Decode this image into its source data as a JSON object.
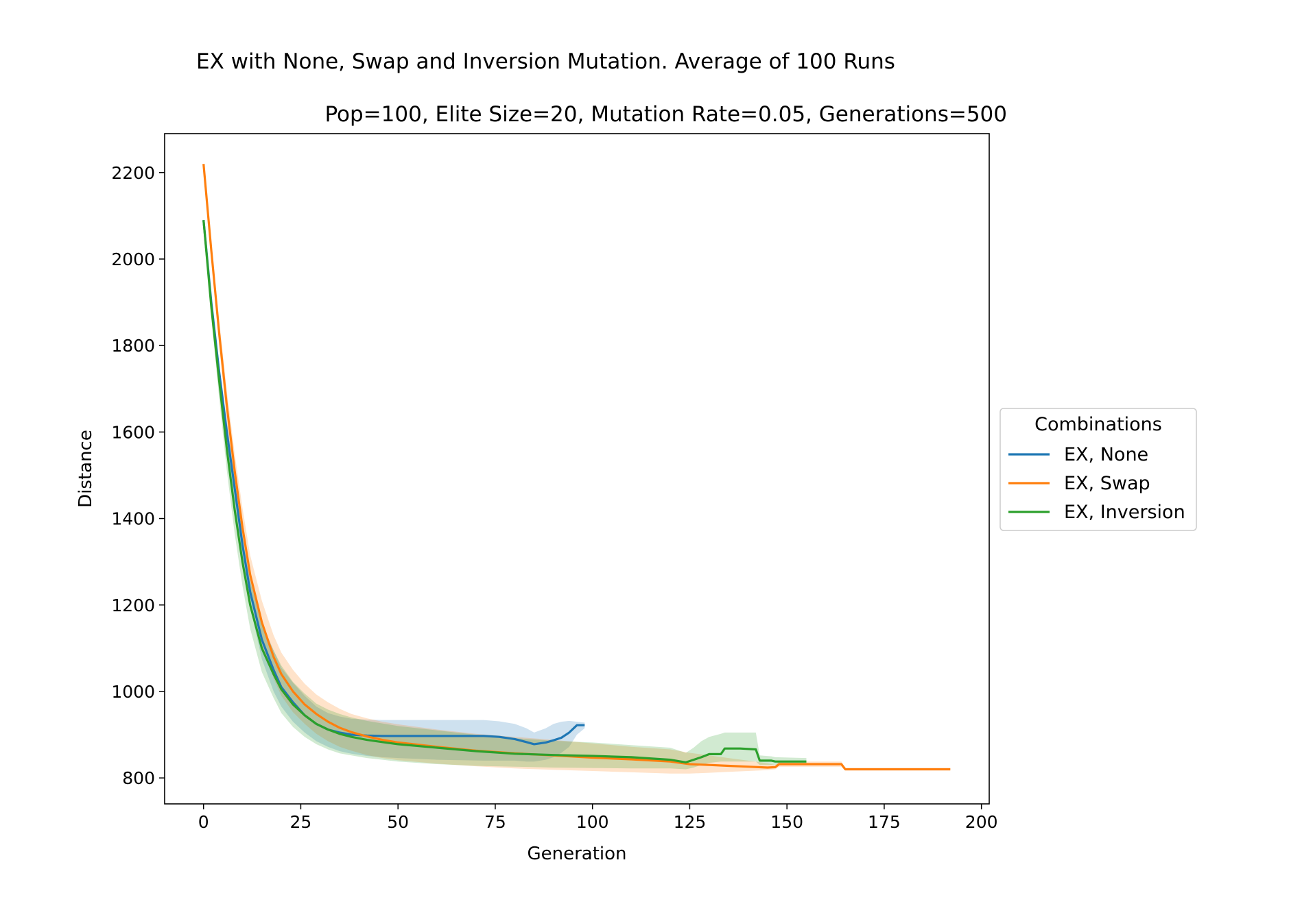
{
  "chart_data": {
    "type": "line",
    "title": "EX with None, Swap and Inversion Mutation. Average of 100 Runs",
    "subtitle": "Pop=100, Elite Size=20, Mutation Rate=0.05, Generations=500",
    "xlabel": "Generation",
    "ylabel": "Distance",
    "xlim": [
      -10,
      202
    ],
    "ylim": [
      740,
      2290
    ],
    "xticks": [
      0,
      25,
      50,
      75,
      100,
      125,
      150,
      175,
      200
    ],
    "yticks": [
      800,
      1000,
      1200,
      1400,
      1600,
      1800,
      2000,
      2200
    ],
    "grid": false,
    "legend": {
      "title": "Combinations",
      "placement": "center-right-outside"
    },
    "series": [
      {
        "name": "EX, None",
        "color": "#1f77b4",
        "x": [
          0,
          2,
          4,
          6,
          8,
          10,
          12,
          15,
          18,
          20,
          23,
          26,
          29,
          32,
          35,
          38,
          42,
          46,
          50,
          60,
          72,
          76,
          80,
          83,
          85,
          88,
          90,
          92,
          94,
          96,
          98
        ],
        "y": [
          2090,
          1900,
          1740,
          1600,
          1470,
          1340,
          1230,
          1120,
          1050,
          1010,
          975,
          945,
          925,
          912,
          905,
          900,
          898,
          897,
          897,
          897,
          897,
          895,
          890,
          883,
          878,
          882,
          887,
          893,
          905,
          922,
          922
        ],
        "lower": [
          2090,
          1890,
          1720,
          1575,
          1440,
          1310,
          1195,
          1075,
          1000,
          965,
          930,
          905,
          885,
          872,
          862,
          856,
          851,
          848,
          846,
          842,
          840,
          840,
          840,
          838,
          838,
          842,
          848,
          858,
          872,
          900,
          915
        ],
        "upper": [
          2090,
          1915,
          1760,
          1625,
          1500,
          1370,
          1265,
          1160,
          1095,
          1055,
          1020,
          990,
          965,
          950,
          942,
          937,
          935,
          934,
          934,
          934,
          934,
          931,
          925,
          915,
          905,
          915,
          925,
          930,
          932,
          930,
          928
        ]
      },
      {
        "name": "EX, Swap",
        "color": "#ff7f0e",
        "x": [
          0,
          2,
          4,
          6,
          8,
          10,
          12,
          15,
          18,
          20,
          23,
          26,
          29,
          32,
          35,
          38,
          42,
          46,
          50,
          60,
          70,
          80,
          90,
          100,
          110,
          120,
          125,
          130,
          135,
          140,
          145,
          147,
          148,
          150,
          155,
          160,
          164,
          165,
          175,
          185,
          192
        ],
        "y": [
          2220,
          2020,
          1830,
          1660,
          1510,
          1380,
          1270,
          1160,
          1080,
          1040,
          1000,
          970,
          948,
          930,
          916,
          906,
          896,
          888,
          882,
          872,
          863,
          857,
          852,
          847,
          843,
          838,
          832,
          830,
          828,
          826,
          824,
          825,
          832,
          832,
          832,
          832,
          832,
          820,
          820,
          820,
          820
        ],
        "lower": [
          2220,
          2005,
          1800,
          1625,
          1470,
          1335,
          1225,
          1110,
          1030,
          990,
          952,
          925,
          902,
          885,
          872,
          863,
          853,
          846,
          841,
          833,
          827,
          822,
          819,
          816,
          813,
          810,
          810,
          812,
          814,
          816,
          818,
          820,
          826,
          826,
          826,
          826,
          826,
          817,
          817,
          817,
          817
        ],
        "upper": [
          2220,
          2035,
          1860,
          1695,
          1550,
          1425,
          1315,
          1210,
          1130,
          1090,
          1050,
          1018,
          993,
          975,
          960,
          948,
          938,
          930,
          924,
          912,
          902,
          895,
          888,
          880,
          872,
          866,
          858,
          852,
          846,
          840,
          834,
          830,
          838,
          838,
          838,
          838,
          838,
          823,
          823,
          823,
          823
        ]
      },
      {
        "name": "EX, Inversion",
        "color": "#2ca02c",
        "x": [
          0,
          2,
          4,
          6,
          8,
          10,
          12,
          15,
          18,
          20,
          23,
          26,
          29,
          32,
          35,
          38,
          42,
          46,
          50,
          60,
          70,
          80,
          90,
          100,
          110,
          120,
          124,
          126,
          128,
          130,
          133,
          134,
          138,
          142,
          143,
          146,
          147,
          155
        ],
        "y": [
          2090,
          1890,
          1720,
          1560,
          1420,
          1300,
          1200,
          1100,
          1040,
          1005,
          970,
          945,
          925,
          912,
          902,
          895,
          888,
          883,
          878,
          870,
          862,
          856,
          853,
          851,
          848,
          842,
          836,
          842,
          848,
          855,
          855,
          868,
          868,
          866,
          840,
          840,
          838,
          838
        ],
        "lower": [
          2090,
          1865,
          1680,
          1510,
          1365,
          1245,
          1145,
          1045,
          985,
          950,
          918,
          895,
          878,
          866,
          857,
          852,
          846,
          842,
          838,
          832,
          828,
          826,
          824,
          823,
          822,
          822,
          820,
          824,
          830,
          835,
          838,
          838,
          838,
          838,
          830,
          830,
          830,
          830
        ],
        "upper": [
          2090,
          1915,
          1760,
          1610,
          1475,
          1355,
          1255,
          1155,
          1095,
          1060,
          1022,
          995,
          972,
          958,
          948,
          940,
          932,
          926,
          920,
          910,
          900,
          892,
          886,
          882,
          876,
          870,
          858,
          870,
          885,
          895,
          902,
          905,
          905,
          905,
          852,
          850,
          848,
          846
        ]
      }
    ]
  }
}
